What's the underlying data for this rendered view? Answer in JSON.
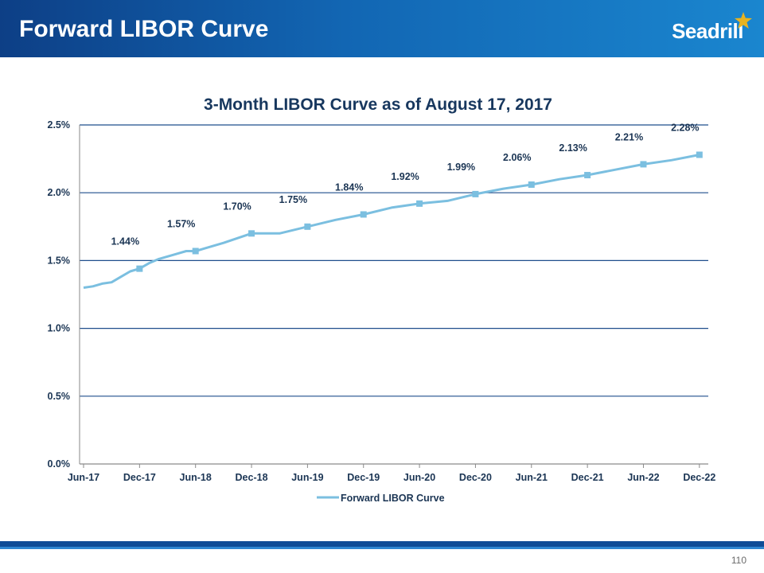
{
  "slide": {
    "title": "Forward LIBOR Curve",
    "logo_text": "Seadrill",
    "page_number": "110"
  },
  "colors": {
    "header": "#1266b3",
    "line": "#7bbfe0",
    "gridline": "#1f4e8c",
    "text": "#1b3554",
    "star": "#e8b320"
  },
  "chart_data": {
    "type": "line",
    "title": "3-Month LIBOR Curve as of August 17, 2017",
    "xlabel": "",
    "ylabel": "",
    "x_ticks": [
      "Jun-17",
      "Dec-17",
      "Jun-18",
      "Dec-18",
      "Jun-19",
      "Dec-19",
      "Jun-20",
      "Dec-20",
      "Jun-21",
      "Dec-21",
      "Jun-22",
      "Dec-22"
    ],
    "y_ticks": [
      "0.0%",
      "0.5%",
      "1.0%",
      "1.5%",
      "2.0%",
      "2.5%"
    ],
    "ylim": [
      0,
      2.5
    ],
    "legend": "bottom",
    "series": [
      {
        "name": "Forward LIBOR Curve",
        "x_months": [
          0,
          1,
          2,
          3,
          4,
          5,
          6,
          7,
          8,
          9,
          10,
          11,
          12,
          15,
          18,
          21,
          24,
          27,
          30,
          33,
          36,
          39,
          42,
          45,
          48,
          51,
          54,
          57,
          60,
          63,
          66
        ],
        "values": [
          1.3,
          1.31,
          1.33,
          1.34,
          1.38,
          1.42,
          1.44,
          1.48,
          1.51,
          1.53,
          1.55,
          1.57,
          1.57,
          1.63,
          1.7,
          1.7,
          1.75,
          1.8,
          1.84,
          1.89,
          1.92,
          1.94,
          1.99,
          2.03,
          2.06,
          2.1,
          2.13,
          2.17,
          2.21,
          2.24,
          2.28
        ]
      }
    ],
    "data_labels": [
      {
        "x_month": 6,
        "value": 1.44,
        "text": "1.44%"
      },
      {
        "x_month": 12,
        "value": 1.57,
        "text": "1.57%"
      },
      {
        "x_month": 18,
        "value": 1.7,
        "text": "1.70%"
      },
      {
        "x_month": 24,
        "value": 1.75,
        "text": "1.75%"
      },
      {
        "x_month": 30,
        "value": 1.84,
        "text": "1.84%"
      },
      {
        "x_month": 36,
        "value": 1.92,
        "text": "1.92%"
      },
      {
        "x_month": 42,
        "value": 1.99,
        "text": "1.99%"
      },
      {
        "x_month": 48,
        "value": 2.06,
        "text": "2.06%"
      },
      {
        "x_month": 54,
        "value": 2.13,
        "text": "2.13%"
      },
      {
        "x_month": 60,
        "value": 2.21,
        "text": "2.21%"
      },
      {
        "x_month": 66,
        "value": 2.28,
        "text": "2.28%"
      }
    ]
  }
}
